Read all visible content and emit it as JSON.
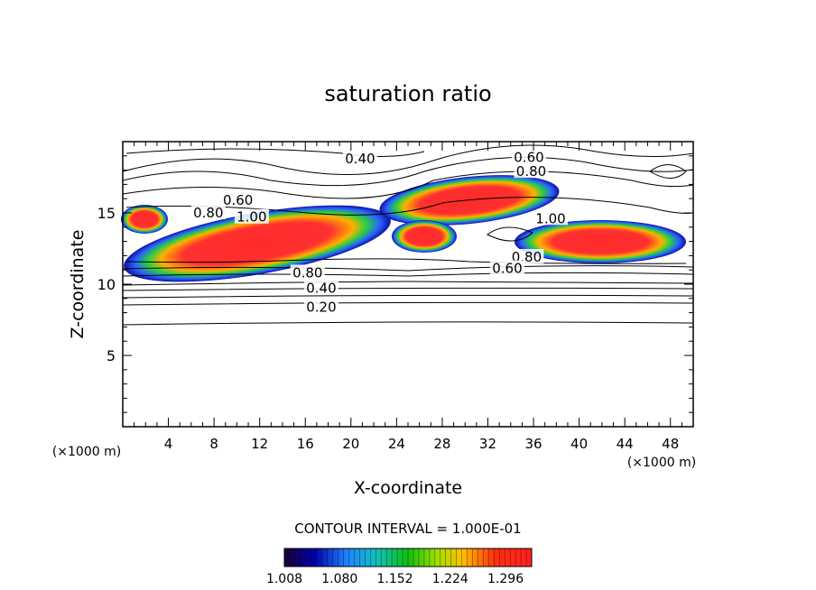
{
  "chart_data": {
    "type": "contour",
    "title": "saturation ratio",
    "xlabel": "X-coordinate",
    "ylabel": "Z-coordinate",
    "x_unit": "(×1000 m)",
    "z_unit": "(×1000 m)",
    "xlim": [
      0,
      50
    ],
    "ylim": [
      0,
      20
    ],
    "x_ticks": [
      "4",
      "8",
      "12",
      "16",
      "20",
      "24",
      "28",
      "32",
      "36",
      "40",
      "44",
      "48"
    ],
    "y_ticks": [
      "5",
      "10",
      "15"
    ],
    "contour_interval_text": "CONTOUR INTERVAL = 1.000E-01",
    "contour_labels": [
      {
        "text": "0.40",
        "x": 20.8,
        "z": 18.8
      },
      {
        "text": "0.60",
        "x": 35.6,
        "z": 18.9
      },
      {
        "text": "0.80",
        "x": 35.8,
        "z": 17.9
      },
      {
        "text": "0.60",
        "x": 10.1,
        "z": 15.9
      },
      {
        "text": "0.80",
        "x": 7.5,
        "z": 15.0
      },
      {
        "text": "1.00",
        "x": 11.3,
        "z": 14.7
      },
      {
        "text": "1.00",
        "x": 37.5,
        "z": 14.6
      },
      {
        "text": "0.80",
        "x": 35.4,
        "z": 11.9
      },
      {
        "text": "0.60",
        "x": 33.7,
        "z": 11.1
      },
      {
        "text": "0.80",
        "x": 16.2,
        "z": 10.8
      },
      {
        "text": "0.40",
        "x": 17.4,
        "z": 9.7
      },
      {
        "text": "0.20",
        "x": 17.4,
        "z": 8.4
      }
    ],
    "colorbar": {
      "min": 1.008,
      "max": 1.33,
      "tick_labels": [
        "1.008",
        "1.080",
        "1.152",
        "1.224",
        "1.296"
      ]
    }
  }
}
